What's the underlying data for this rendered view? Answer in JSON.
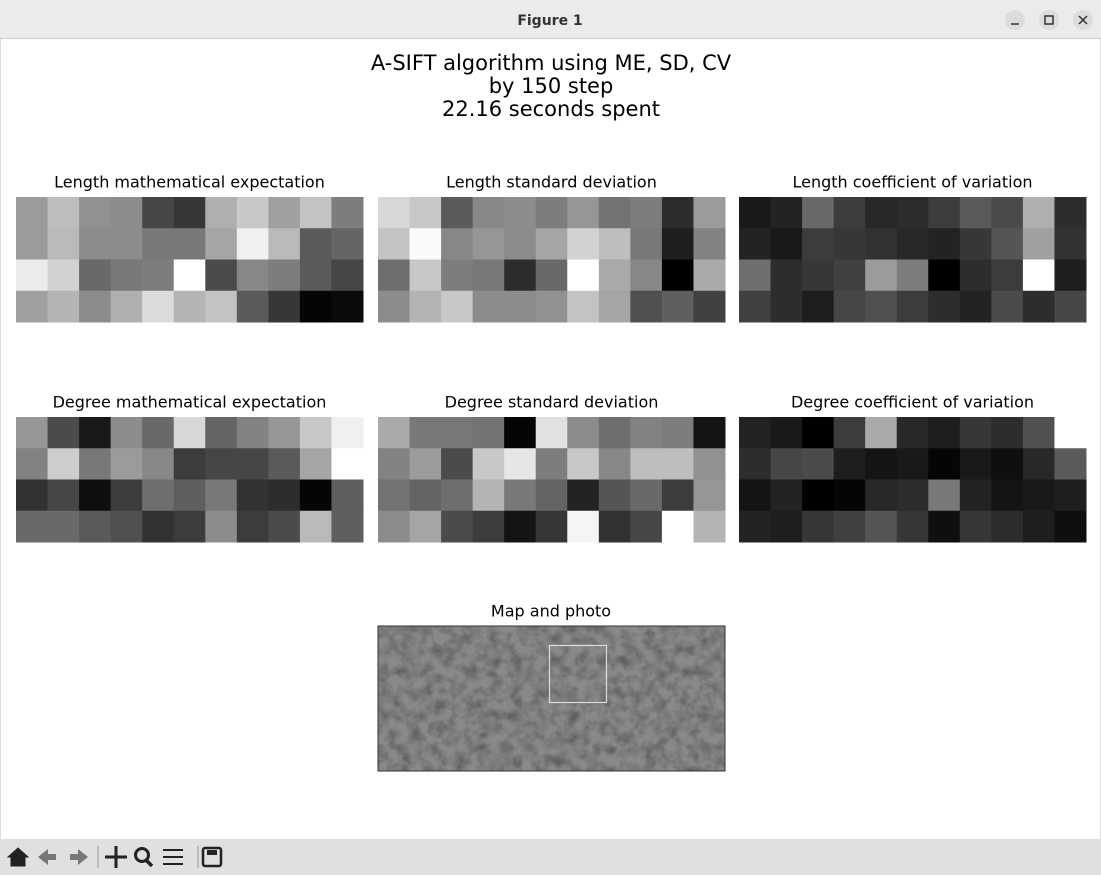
{
  "window": {
    "title": "Figure 1"
  },
  "figure": {
    "title": [
      "A-SIFT algorithm using ME, SD, CV",
      "by 150 step",
      "22.16 seconds spent"
    ],
    "panels": [
      {
        "title": "Length mathematical expectation",
        "values": [
          [
            155,
            190,
            145,
            140,
            70,
            55,
            175,
            200,
            160,
            195,
            125
          ],
          [
            155,
            185,
            140,
            140,
            120,
            120,
            165,
            240,
            185,
            90,
            100
          ],
          [
            235,
            210,
            105,
            120,
            125,
            255,
            75,
            135,
            125,
            90,
            70
          ],
          [
            160,
            180,
            140,
            175,
            220,
            180,
            195,
            90,
            55,
            5,
            10
          ]
        ]
      },
      {
        "title": "Length standard deviation",
        "values": [
          [
            215,
            200,
            90,
            135,
            140,
            125,
            150,
            115,
            125,
            45,
            155
          ],
          [
            195,
            250,
            135,
            150,
            140,
            165,
            210,
            190,
            120,
            30,
            130
          ],
          [
            110,
            200,
            125,
            120,
            45,
            105,
            255,
            170,
            135,
            0,
            170
          ],
          [
            140,
            180,
            200,
            140,
            140,
            145,
            195,
            165,
            80,
            95,
            65
          ]
        ]
      },
      {
        "title": "Length coefficient of variation",
        "values": [
          [
            25,
            35,
            105,
            60,
            40,
            45,
            60,
            90,
            75,
            175,
            45
          ],
          [
            35,
            25,
            60,
            55,
            50,
            40,
            35,
            55,
            85,
            160,
            50
          ],
          [
            110,
            45,
            55,
            65,
            155,
            125,
            0,
            45,
            60,
            255,
            30
          ],
          [
            65,
            45,
            30,
            70,
            80,
            60,
            45,
            35,
            75,
            45,
            70
          ]
        ]
      },
      {
        "title": "Degree mathematical expectation",
        "values": [
          [
            150,
            75,
            25,
            140,
            105,
            215,
            100,
            130,
            150,
            200,
            240
          ],
          [
            130,
            205,
            120,
            155,
            135,
            60,
            70,
            70,
            90,
            165,
            255
          ],
          [
            50,
            70,
            15,
            60,
            110,
            95,
            120,
            50,
            45,
            5,
            95
          ],
          [
            105,
            105,
            90,
            80,
            50,
            60,
            140,
            60,
            75,
            185,
            95
          ]
        ]
      },
      {
        "title": "Degree standard deviation",
        "values": [
          [
            170,
            120,
            120,
            115,
            5,
            225,
            140,
            110,
            130,
            125,
            20
          ],
          [
            130,
            155,
            75,
            200,
            230,
            125,
            200,
            135,
            190,
            190,
            145
          ],
          [
            115,
            100,
            110,
            180,
            120,
            100,
            35,
            85,
            105,
            60,
            150
          ],
          [
            140,
            165,
            75,
            60,
            20,
            55,
            245,
            50,
            70,
            255,
            180
          ]
        ]
      },
      {
        "title": "Degree coefficient of variation",
        "values": [
          [
            35,
            25,
            0,
            60,
            170,
            40,
            30,
            55,
            45,
            80,
            255
          ],
          [
            45,
            70,
            75,
            30,
            20,
            25,
            5,
            25,
            15,
            40,
            90
          ],
          [
            20,
            35,
            0,
            5,
            40,
            45,
            120,
            35,
            20,
            25,
            30
          ],
          [
            35,
            30,
            55,
            65,
            85,
            55,
            15,
            55,
            45,
            30,
            15
          ]
        ]
      }
    ],
    "map_title": "Map and photo"
  }
}
